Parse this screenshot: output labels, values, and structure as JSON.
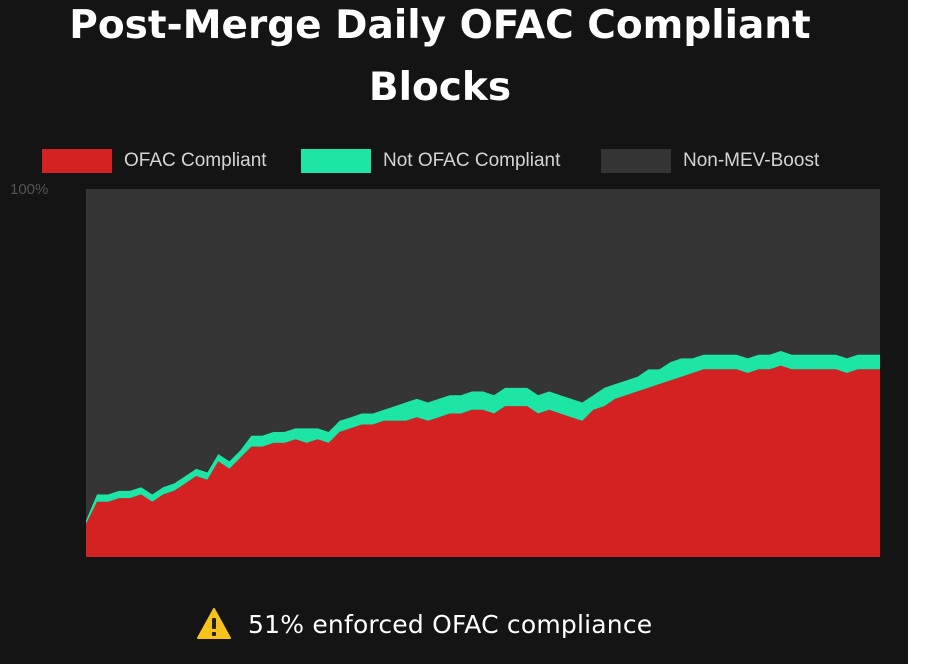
{
  "colors": {
    "background": "#141414",
    "plot_background": "#333333",
    "ofac_compliant": "#d42222",
    "not_ofac_compliant": "#1de5a6",
    "non_mev_boost": "#353535"
  },
  "chart_data": {
    "type": "area",
    "stacked": true,
    "title": "Post-Merge Daily OFAC Compliant Blocks",
    "title_lines": [
      "Post-Merge Daily OFAC Compliant",
      "Blocks"
    ],
    "xlabel": "",
    "ylabel": "",
    "ylim": [
      0,
      100
    ],
    "y_tick_labels": [
      "100%"
    ],
    "legend_position": "top",
    "grid": false,
    "series": [
      {
        "name": "OFAC Compliant",
        "color": "#d42222",
        "values": [
          9,
          15,
          15,
          16,
          16,
          17,
          15,
          17,
          18,
          20,
          22,
          21,
          26,
          24,
          27,
          30,
          30,
          31,
          31,
          32,
          31,
          32,
          31,
          34,
          35,
          36,
          36,
          37,
          37,
          37,
          38,
          37,
          38,
          39,
          39,
          40,
          40,
          39,
          41,
          41,
          41,
          39,
          40,
          39,
          38,
          37,
          40,
          41,
          43,
          44,
          45,
          46,
          47,
          48,
          49,
          50,
          51,
          51,
          51,
          51,
          50,
          51,
          51,
          52,
          51,
          51,
          51,
          51,
          51,
          50,
          51,
          51,
          51
        ]
      },
      {
        "name": "Not OFAC Compliant",
        "color": "#1de5a6",
        "values": [
          1,
          2,
          2,
          2,
          2,
          2,
          2,
          2,
          2,
          2,
          2,
          2,
          2,
          2,
          2,
          3,
          3,
          3,
          3,
          3,
          4,
          3,
          3,
          3,
          3,
          3,
          3,
          3,
          4,
          5,
          5,
          5,
          5,
          5,
          5,
          5,
          5,
          5,
          5,
          5,
          5,
          5,
          5,
          5,
          5,
          5,
          4,
          5,
          4,
          4,
          4,
          5,
          4,
          5,
          5,
          4,
          4,
          4,
          4,
          4,
          4,
          4,
          4,
          4,
          4,
          4,
          4,
          4,
          4,
          4,
          4,
          4,
          4
        ]
      },
      {
        "name": "Non-MEV-Boost",
        "color": "#353535",
        "values": [
          90,
          83,
          83,
          82,
          82,
          81,
          83,
          81,
          80,
          78,
          76,
          77,
          72,
          74,
          71,
          67,
          67,
          66,
          66,
          65,
          65,
          65,
          66,
          63,
          62,
          61,
          61,
          60,
          59,
          58,
          57,
          58,
          57,
          56,
          56,
          55,
          55,
          56,
          54,
          54,
          54,
          56,
          55,
          56,
          57,
          58,
          56,
          54,
          53,
          52,
          51,
          49,
          49,
          47,
          46,
          46,
          45,
          45,
          45,
          45,
          46,
          45,
          45,
          44,
          45,
          45,
          45,
          45,
          45,
          46,
          45,
          45,
          45
        ]
      }
    ]
  },
  "footer": {
    "icon": "warning-icon",
    "text": "51% enforced OFAC compliance"
  }
}
